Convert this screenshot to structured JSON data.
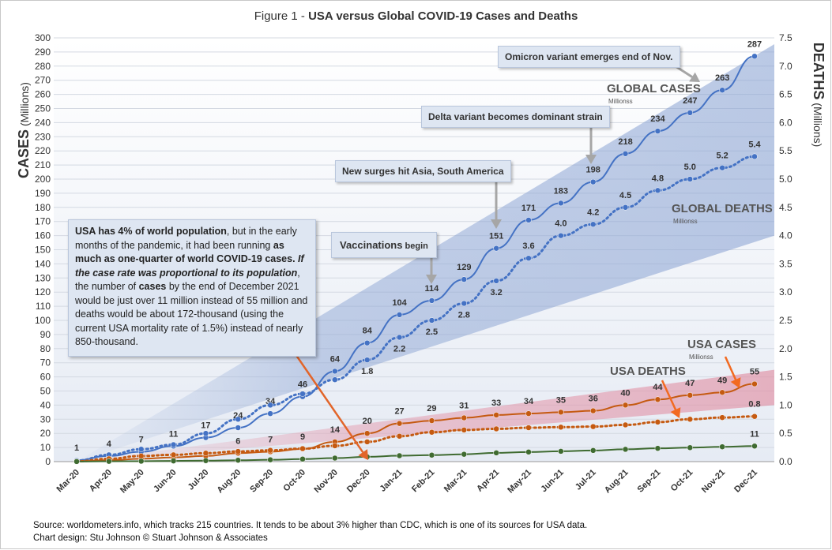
{
  "title_prefix": "Figure 1 - ",
  "title_main": "USA versus Global COVID-19 Cases and Deaths",
  "left_axis_title": "CASES",
  "left_axis_units": " (Millions)",
  "right_axis_title": "DEATHS",
  "right_axis_units": " (Millions)",
  "annotations": {
    "omicron": "Omicron variant emerges end of Nov.",
    "delta": "Delta variant becomes dominant strain",
    "surges": "New surges hit Asia, South America",
    "vaccinations_bold": "Vaccinations",
    "vaccinations_rest": " begin",
    "global_cases": "GLOBAL CASES",
    "global_cases_sub": "Millionss",
    "global_deaths": "GLOBAL DEATHS",
    "global_deaths_sub": "Millionss",
    "usa_cases": "USA CASES",
    "usa_cases_sub": "Millionss",
    "usa_deaths": "USA DEATHS"
  },
  "note": {
    "p1_bold": "USA has 4% of world population",
    "p2": ", but in the early months of the pandemic, it had been running ",
    "p3_bold": "as much as one-quarter of world COVID-19 cases.",
    "p4_bolditalic": " If the case rate was proportional to its population",
    "p5": ", the number of ",
    "p6_bold": "cases",
    "p7": " by the end of December 2021 would be just over 11 million instead of 55 million and deaths would be about 172-thousand (using the current USA mortality rate of 1.5%) instead of nearly 850-thousand."
  },
  "footer": {
    "line1": "Source: worldometers.info, which tracks 215 countries. It tends to be about 3% higher than CDC, which is one of its sources for USA data.",
    "line2": "Chart design: Stu Johnson  © Stuart Johnson & Associates"
  },
  "chart_data": {
    "type": "line",
    "categories": [
      "Mar-20",
      "Apr-20",
      "May-20",
      "Jun-20",
      "Jul-20",
      "Aug-20",
      "Sep-20",
      "Oct-20",
      "Nov-20",
      "Dec-20",
      "Jan-21",
      "Feb-21",
      "Mar-21",
      "Apr-21",
      "May-21",
      "Jun-21",
      "Jul-21",
      "Aug-21",
      "Sep-21",
      "Oct-21",
      "Nov-21",
      "Dec-21"
    ],
    "left_axis": {
      "title": "CASES (Millions)",
      "ylim": [
        0,
        300
      ],
      "step": 10
    },
    "right_axis": {
      "title": "DEATHS (Millions)",
      "ylim": [
        0,
        7.5
      ],
      "step": 0.5
    },
    "series": [
      {
        "name": "GLOBAL CASES",
        "axis": "left",
        "style": "solid",
        "color": "#4472c4",
        "values": [
          1,
          4,
          7,
          11,
          17,
          24,
          34,
          46,
          64,
          84,
          104,
          114,
          129,
          151,
          171,
          183,
          198,
          218,
          234,
          247,
          263,
          287
        ],
        "labels": [
          "1",
          "4",
          "7",
          "11",
          "17",
          "24",
          "34",
          "46",
          "64",
          "84",
          "104",
          "114",
          "129",
          "151",
          "171",
          "183",
          "198",
          "218",
          "234",
          "247",
          "263",
          "287"
        ]
      },
      {
        "name": "GLOBAL DEATHS",
        "axis": "right",
        "style": "dotted",
        "color": "#4472c4",
        "values": [
          0.02,
          0.12,
          0.22,
          0.3,
          0.5,
          0.75,
          1.0,
          1.2,
          1.45,
          1.8,
          2.2,
          2.5,
          2.8,
          3.2,
          3.6,
          4.0,
          4.2,
          4.5,
          4.8,
          5.0,
          5.2,
          5.4
        ],
        "labels": [
          "",
          "",
          "",
          "",
          "",
          "",
          "",
          "",
          "",
          "1.8",
          "2.2",
          "2.5",
          "2.8",
          "3.2",
          "3.6",
          "4.0",
          "4.2",
          "4.5",
          "4.8",
          "5.0",
          "5.2",
          "5.4"
        ]
      },
      {
        "name": "USA CASES",
        "axis": "left",
        "style": "solid",
        "color": "#c55a11",
        "values": [
          0.2,
          1,
          2,
          3,
          4,
          6,
          7,
          9,
          14,
          20,
          27,
          29,
          31,
          33,
          34,
          35,
          36,
          40,
          44,
          47,
          49,
          55
        ],
        "labels": [
          "",
          "",
          "",
          "",
          "",
          "6",
          "7",
          "9",
          "14",
          "20",
          "27",
          "29",
          "31",
          "33",
          "34",
          "35",
          "36",
          "40",
          "44",
          "47",
          "49",
          "55"
        ]
      },
      {
        "name": "USA DEATHS",
        "axis": "right",
        "style": "dotted",
        "color": "#c55a11",
        "values": [
          0.005,
          0.05,
          0.1,
          0.12,
          0.15,
          0.18,
          0.2,
          0.23,
          0.28,
          0.35,
          0.45,
          0.52,
          0.56,
          0.58,
          0.6,
          0.61,
          0.62,
          0.65,
          0.7,
          0.75,
          0.78,
          0.8
        ],
        "labels": [
          "",
          "",
          "",
          "",
          "",
          "",
          "",
          "",
          "",
          "",
          "",
          "",
          "",
          "",
          "",
          "",
          "",
          "",
          "",
          "",
          "",
          "0.8"
        ]
      },
      {
        "name": "USA proportional cases",
        "axis": "left",
        "style": "solid",
        "color": "#3f6b31",
        "values": [
          0.05,
          0.2,
          0.3,
          0.5,
          0.7,
          1,
          1.3,
          1.8,
          2.5,
          3.4,
          4.2,
          4.6,
          5.2,
          6.2,
          6.8,
          7.3,
          7.9,
          8.7,
          9.4,
          9.9,
          10.5,
          11
        ],
        "labels": [
          "",
          "",
          "",
          "",
          "",
          "",
          "",
          "",
          "",
          "",
          "",
          "",
          "",
          "",
          "",
          "",
          "",
          "",
          "",
          "",
          "",
          "11"
        ]
      }
    ],
    "grid": true
  }
}
